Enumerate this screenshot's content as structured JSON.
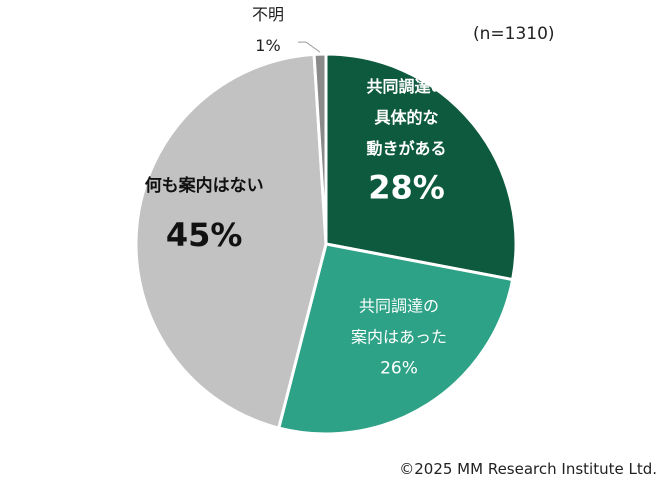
{
  "chart_data": {
    "type": "pie",
    "sample_size_label": "(n=1310)",
    "slices": [
      {
        "label_lines": [
          "共同調達の",
          "具体的な",
          "動きがある"
        ],
        "value": 28,
        "value_label": "28%",
        "color": "#0e5a3f",
        "text_color": "#ffffff"
      },
      {
        "label_lines": [
          "共同調達の",
          "案内はあった"
        ],
        "value": 26,
        "value_label": "26%",
        "color": "#2ea287",
        "text_color": "#ffffff"
      },
      {
        "label_lines": [
          "何も案内はない"
        ],
        "value": 45,
        "value_label": "45%",
        "color": "#c2c2c2",
        "text_color": "#111111"
      },
      {
        "label_lines": [
          "不明"
        ],
        "value": 1,
        "value_label": "1%",
        "color": "#8a8a8a",
        "text_color": "#222222"
      }
    ],
    "start_angle_deg": 0,
    "direction": "clockwise"
  },
  "footer": {
    "copyright": "©2025 MM Research Institute Ltd."
  }
}
